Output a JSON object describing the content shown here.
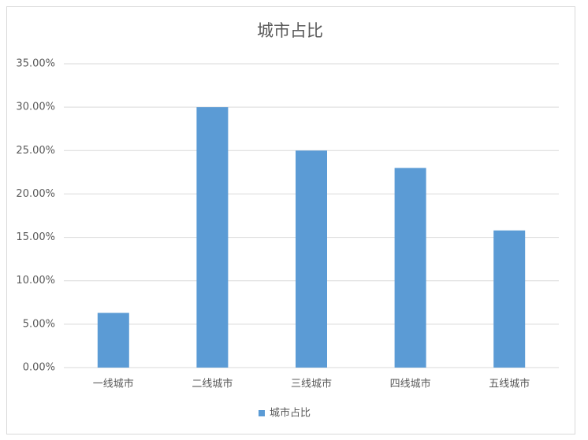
{
  "chart_data": {
    "type": "bar",
    "title": "城市占比",
    "categories": [
      "一线城市",
      "二线城市",
      "三线城市",
      "四线城市",
      "五线城市"
    ],
    "series": [
      {
        "name": "城市占比",
        "color": "#5b9bd5",
        "values": [
          6.3,
          30,
          25,
          23,
          15.8
        ]
      }
    ],
    "ylim": [
      0,
      35
    ],
    "yticks": [
      {
        "value": 0,
        "label": "0.00%"
      },
      {
        "value": 5,
        "label": "5.00%"
      },
      {
        "value": 10,
        "label": "10.00%"
      },
      {
        "value": 15,
        "label": "15.00%"
      },
      {
        "value": 20,
        "label": "20.00%"
      },
      {
        "value": 25,
        "label": "25.00%"
      },
      {
        "value": 30,
        "label": "30.00%"
      },
      {
        "value": 35,
        "label": "35.00%"
      }
    ],
    "grid": true,
    "legend": "bottom"
  }
}
